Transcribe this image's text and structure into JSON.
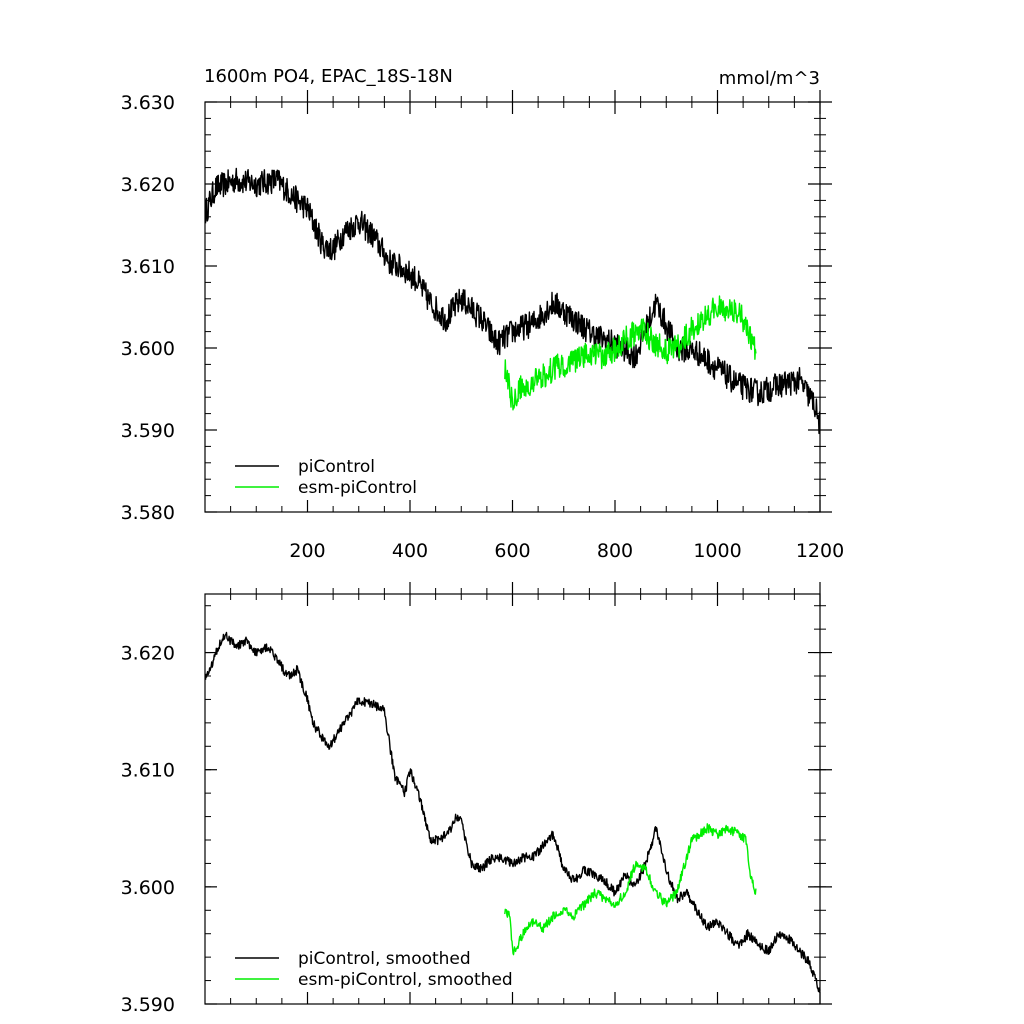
{
  "chart_data": [
    {
      "type": "line",
      "title": "1600m PO4, EPAC_18S-18N",
      "units": "mmol/m^3",
      "xlim": [
        0,
        1200
      ],
      "ylim": [
        3.58,
        3.63
      ],
      "x_ticks": [
        200,
        400,
        600,
        800,
        1000,
        1200
      ],
      "y_ticks": [
        3.58,
        3.59,
        3.6,
        3.61,
        3.62,
        3.63
      ],
      "y_tick_labels": [
        "3.580",
        "3.590",
        "3.600",
        "3.610",
        "3.620",
        "3.630"
      ],
      "legend": "bottom-left",
      "series": [
        {
          "name": "piControl",
          "color": "#000000",
          "noise": 0.0016,
          "x": [
            1,
            20,
            60,
            100,
            140,
            180,
            200,
            230,
            250,
            270,
            300,
            330,
            360,
            390,
            410,
            440,
            470,
            500,
            540,
            570,
            600,
            640,
            680,
            720,
            760,
            800,
            840,
            880,
            920,
            960,
            1000,
            1040,
            1080,
            1120,
            1160,
            1190,
            1200
          ],
          "y": [
            3.6165,
            3.6195,
            3.6205,
            3.62,
            3.6205,
            3.618,
            3.617,
            3.6125,
            3.612,
            3.614,
            3.6155,
            3.6135,
            3.6105,
            3.6095,
            3.6085,
            3.6055,
            3.6035,
            3.606,
            3.6035,
            3.6005,
            3.602,
            3.603,
            3.6055,
            3.6035,
            3.6015,
            3.6005,
            3.599,
            3.6055,
            3.6,
            3.5995,
            3.5975,
            3.5955,
            3.5945,
            3.5955,
            3.596,
            3.593,
            3.5905
          ]
        },
        {
          "name": "esm-piControl",
          "color": "#00ee00",
          "noise": 0.0016,
          "x": [
            585,
            600,
            620,
            650,
            680,
            700,
            720,
            750,
            780,
            800,
            820,
            850,
            880,
            900,
            920,
            940,
            960,
            980,
            1000,
            1020,
            1040,
            1060,
            1075
          ],
          "y": [
            3.5975,
            3.5935,
            3.5955,
            3.596,
            3.5975,
            3.598,
            3.5985,
            3.5995,
            3.599,
            3.6,
            3.601,
            3.6025,
            3.6005,
            3.5995,
            3.6,
            3.6015,
            3.603,
            3.604,
            3.605,
            3.6045,
            3.6045,
            3.602,
            3.5995
          ]
        }
      ]
    },
    {
      "type": "line",
      "title": "",
      "xlim": [
        0,
        1200
      ],
      "ylim": [
        3.59,
        3.625
      ],
      "x_ticks": [
        200,
        400,
        600,
        800,
        1000,
        1200
      ],
      "y_ticks": [
        3.59,
        3.6,
        3.61,
        3.62
      ],
      "y_tick_labels": [
        "3.590",
        "3.600",
        "3.610",
        "3.620"
      ],
      "legend": "bottom-left",
      "series": [
        {
          "name": "piControl, smoothed",
          "color": "#000000",
          "noise": 0.0004,
          "x": [
            1,
            10,
            25,
            40,
            60,
            80,
            100,
            120,
            140,
            160,
            180,
            200,
            210,
            240,
            250,
            280,
            300,
            330,
            350,
            370,
            390,
            400,
            420,
            440,
            460,
            480,
            490,
            500,
            520,
            540,
            560,
            580,
            600,
            620,
            640,
            660,
            680,
            700,
            720,
            740,
            760,
            780,
            800,
            820,
            840,
            860,
            880,
            900,
            920,
            940,
            960,
            980,
            1000,
            1020,
            1040,
            1060,
            1080,
            1100,
            1120,
            1140,
            1160,
            1180,
            1200
          ],
          "y": [
            3.618,
            3.6185,
            3.6205,
            3.6215,
            3.6205,
            3.621,
            3.62,
            3.6205,
            3.6195,
            3.618,
            3.6185,
            3.616,
            3.614,
            3.612,
            3.6125,
            3.6145,
            3.616,
            3.6155,
            3.615,
            3.6095,
            3.608,
            3.61,
            3.6075,
            3.604,
            3.604,
            3.605,
            3.606,
            3.6055,
            3.602,
            3.6015,
            3.6025,
            3.6025,
            3.602,
            3.6025,
            3.6025,
            3.6035,
            3.6045,
            3.6015,
            3.6005,
            3.6015,
            3.601,
            3.6005,
            3.5995,
            3.601,
            3.6,
            3.602,
            3.605,
            3.6015,
            3.599,
            3.5995,
            3.598,
            3.5965,
            3.597,
            3.596,
            3.595,
            3.596,
            3.595,
            3.5945,
            3.596,
            3.5955,
            3.5945,
            3.5935,
            3.591
          ]
        },
        {
          "name": "esm-piControl, smoothed",
          "color": "#00ee00",
          "noise": 0.0004,
          "x": [
            585,
            595,
            600,
            610,
            620,
            640,
            660,
            680,
            700,
            720,
            740,
            760,
            780,
            800,
            820,
            840,
            860,
            880,
            900,
            920,
            940,
            950,
            980,
            1000,
            1020,
            1040,
            1055,
            1065,
            1075
          ],
          "y": [
            3.598,
            3.5975,
            3.5945,
            3.595,
            3.596,
            3.597,
            3.5965,
            3.5975,
            3.598,
            3.5975,
            3.5985,
            3.5995,
            3.599,
            3.5985,
            3.5995,
            3.602,
            3.6015,
            3.5995,
            3.5985,
            3.5995,
            3.6025,
            3.604,
            3.605,
            3.6045,
            3.605,
            3.6045,
            3.604,
            3.601,
            3.5995
          ]
        }
      ]
    }
  ]
}
